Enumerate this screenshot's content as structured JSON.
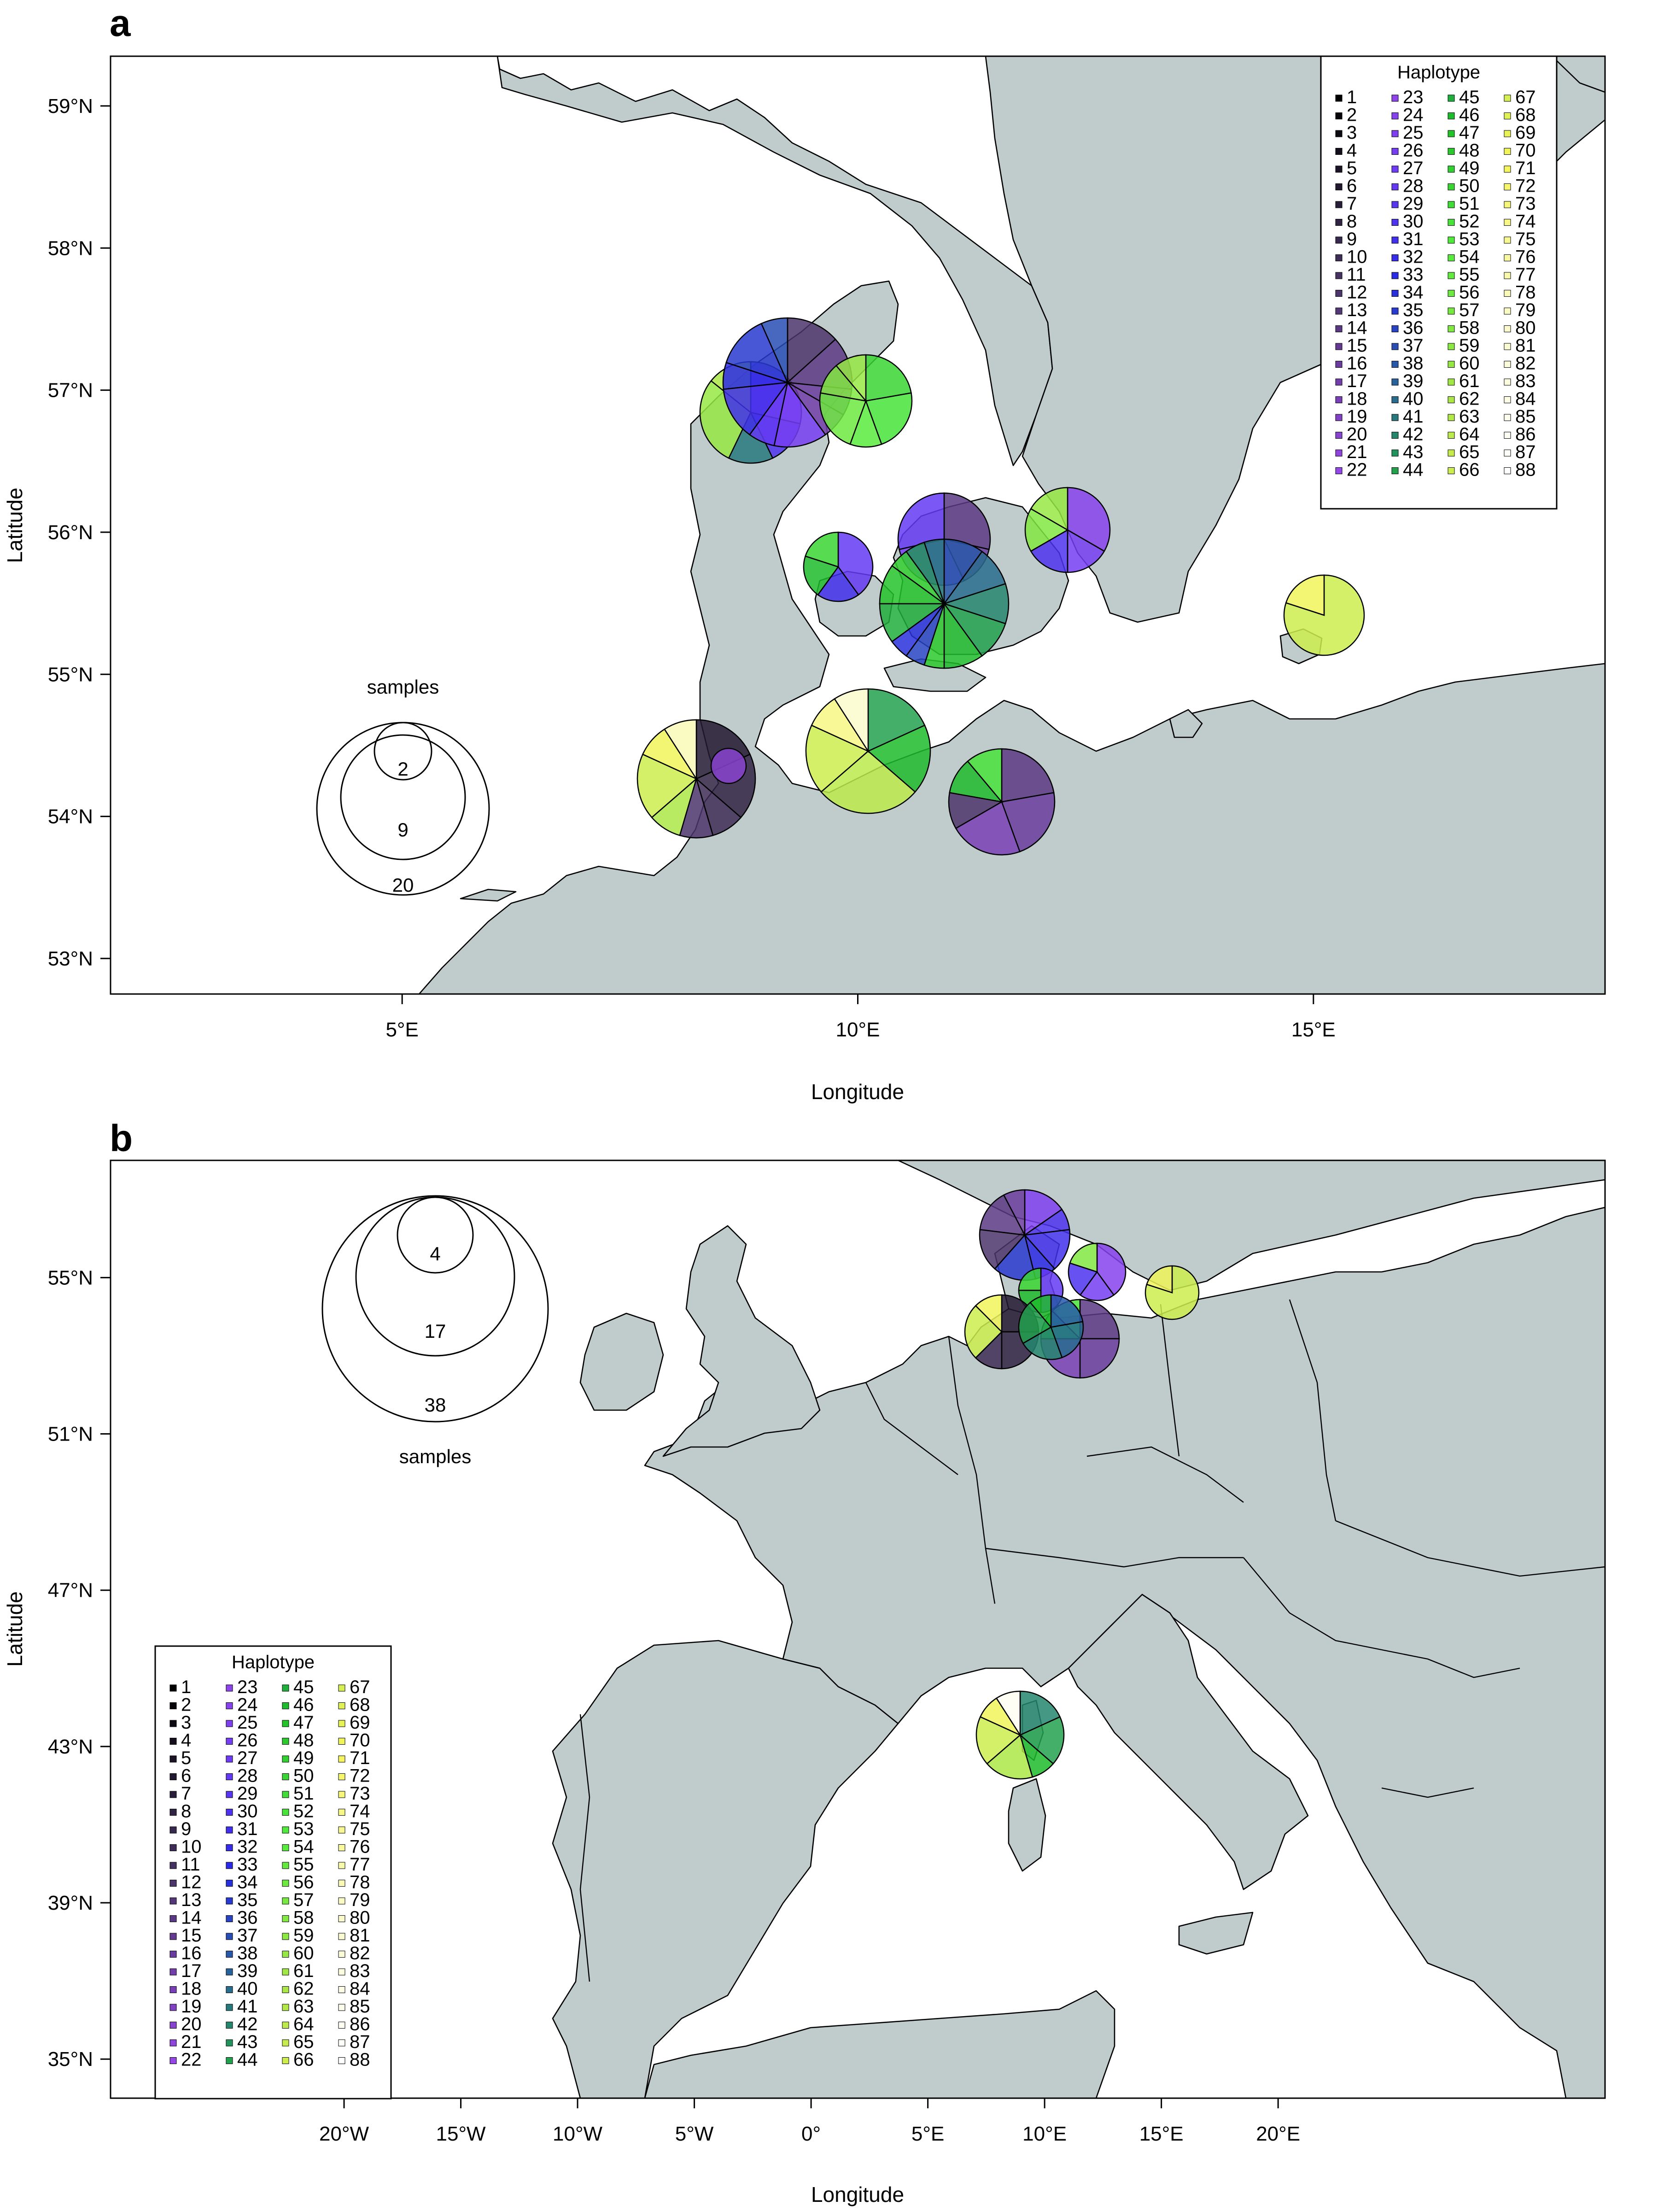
{
  "panels": [
    {
      "id": "a",
      "label": "a",
      "xlabel": "Longitude",
      "ylabel": "Latitude",
      "xticks": [
        "5°E",
        "10°E",
        "15°E"
      ],
      "yticks": [
        "53°N",
        "54°N",
        "55°N",
        "56°N",
        "57°N",
        "58°N",
        "59°N"
      ],
      "xrange": [
        1.8,
        18.2
      ],
      "yrange": [
        52.75,
        59.35
      ],
      "sample_legend": {
        "title": "samples",
        "sizes": [
          "2",
          "9",
          "20"
        ]
      },
      "legend_title": "Haplotype"
    },
    {
      "id": "b",
      "label": "b",
      "xlabel": "Longitude",
      "ylabel": "Latitude",
      "xticks": [
        "20°W",
        "15°W",
        "10°W",
        "5°W",
        "0°",
        "5°E",
        "10°E",
        "15°E",
        "20°E"
      ],
      "yticks": [
        "35°N",
        "39°N",
        "43°N",
        "47°N",
        "51°N",
        "55°N"
      ],
      "xrange": [
        -30,
        34
      ],
      "yrange": [
        34.0,
        58.0
      ],
      "sample_legend": {
        "title": "samples",
        "sizes": [
          "4",
          "17",
          "38"
        ]
      },
      "legend_title": "Haplotype"
    }
  ],
  "haplotype_labels": [
    "1",
    "2",
    "3",
    "4",
    "5",
    "6",
    "7",
    "8",
    "9",
    "10",
    "11",
    "12",
    "13",
    "14",
    "15",
    "16",
    "17",
    "18",
    "19",
    "20",
    "21",
    "22",
    "23",
    "24",
    "25",
    "26",
    "27",
    "28",
    "29",
    "30",
    "31",
    "32",
    "33",
    "34",
    "35",
    "36",
    "37",
    "38",
    "39",
    "40",
    "41",
    "42",
    "43",
    "44",
    "45",
    "46",
    "47",
    "48",
    "49",
    "50",
    "51",
    "52",
    "53",
    "54",
    "55",
    "56",
    "57",
    "58",
    "59",
    "60",
    "61",
    "62",
    "63",
    "64",
    "65",
    "66",
    "67",
    "68",
    "69",
    "70",
    "71",
    "72",
    "73",
    "74",
    "75",
    "76",
    "77",
    "78",
    "79",
    "80",
    "81",
    "82",
    "83",
    "84",
    "85",
    "86",
    "87",
    "88"
  ],
  "colors": {
    "land": "#c0cbcb",
    "sea": "#ffffff",
    "outline": "#000000"
  }
}
